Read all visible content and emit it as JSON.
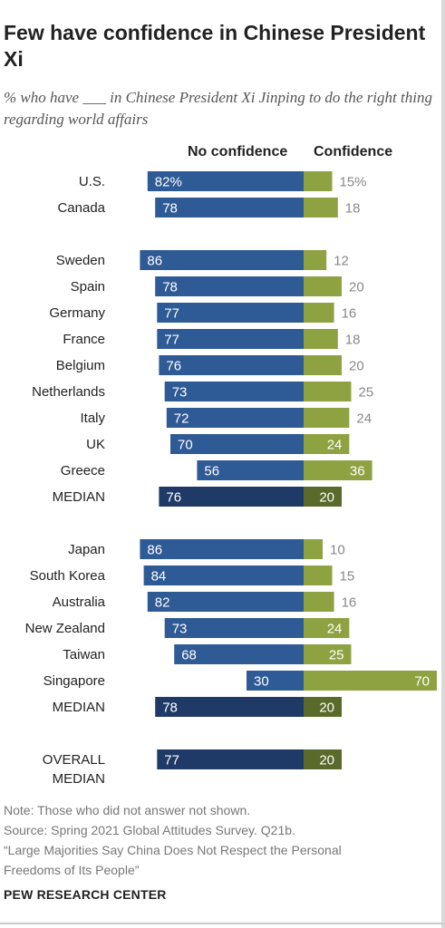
{
  "header": {
    "title": "Few have confidence in Chinese President Xi",
    "subtitle": "% who have ___ in Chinese President Xi Jinping to do the right thing regarding world affairs"
  },
  "colors": {
    "no_confidence": "#2e5a96",
    "no_confidence_median": "#1f3a66",
    "confidence": "#8fa242",
    "confidence_median": "#5a6a2a",
    "label_outside": "#888888",
    "label_inside": "#ffffff"
  },
  "chart_data": {
    "type": "bar",
    "orientation": "horizontal-diverging",
    "series": [
      {
        "name": "No confidence"
      },
      {
        "name": "Confidence"
      }
    ],
    "groups": [
      {
        "rows": [
          {
            "label": "U.S.",
            "no": 82,
            "yes": 15,
            "no_text": "82%",
            "yes_text": "15%"
          },
          {
            "label": "Canada",
            "no": 78,
            "yes": 18,
            "no_text": "78",
            "yes_text": "18"
          }
        ]
      },
      {
        "rows": [
          {
            "label": "Sweden",
            "no": 86,
            "yes": 12,
            "no_text": "86",
            "yes_text": "12"
          },
          {
            "label": "Spain",
            "no": 78,
            "yes": 20,
            "no_text": "78",
            "yes_text": "20"
          },
          {
            "label": "Germany",
            "no": 77,
            "yes": 16,
            "no_text": "77",
            "yes_text": "16"
          },
          {
            "label": "France",
            "no": 77,
            "yes": 18,
            "no_text": "77",
            "yes_text": "18"
          },
          {
            "label": "Belgium",
            "no": 76,
            "yes": 20,
            "no_text": "76",
            "yes_text": "20"
          },
          {
            "label": "Netherlands",
            "no": 73,
            "yes": 25,
            "no_text": "73",
            "yes_text": "25"
          },
          {
            "label": "Italy",
            "no": 72,
            "yes": 24,
            "no_text": "72",
            "yes_text": "24"
          },
          {
            "label": "UK",
            "no": 70,
            "yes": 24,
            "no_text": "70",
            "yes_text": "24"
          },
          {
            "label": "Greece",
            "no": 56,
            "yes": 36,
            "no_text": "56",
            "yes_text": "36"
          },
          {
            "label": "MEDIAN",
            "no": 76,
            "yes": 20,
            "no_text": "76",
            "yes_text": "20",
            "median": true
          }
        ]
      },
      {
        "rows": [
          {
            "label": "Japan",
            "no": 86,
            "yes": 10,
            "no_text": "86",
            "yes_text": "10"
          },
          {
            "label": "South Korea",
            "no": 84,
            "yes": 15,
            "no_text": "84",
            "yes_text": "15"
          },
          {
            "label": "Australia",
            "no": 82,
            "yes": 16,
            "no_text": "82",
            "yes_text": "16"
          },
          {
            "label": "New Zealand",
            "no": 73,
            "yes": 24,
            "no_text": "73",
            "yes_text": "24"
          },
          {
            "label": "Taiwan",
            "no": 68,
            "yes": 25,
            "no_text": "68",
            "yes_text": "25"
          },
          {
            "label": "Singapore",
            "no": 30,
            "yes": 70,
            "no_text": "30",
            "yes_text": "70"
          },
          {
            "label": "MEDIAN",
            "no": 78,
            "yes": 20,
            "no_text": "78",
            "yes_text": "20",
            "median": true
          }
        ]
      },
      {
        "rows": [
          {
            "label": "OVERALL MEDIAN",
            "label_lines": [
              "OVERALL",
              "MEDIAN"
            ],
            "no": 77,
            "yes": 20,
            "no_text": "77",
            "yes_text": "20",
            "median": true
          }
        ]
      }
    ]
  },
  "notes": {
    "note": "Note: Those who did not answer not shown.",
    "source": "Source: Spring 2021 Global Attitudes Survey. Q21b.",
    "report_line1": "“Large Majorities Say China Does Not Respect the Personal",
    "report_line2": "Freedoms of Its People”"
  },
  "brand": "PEW RESEARCH CENTER"
}
